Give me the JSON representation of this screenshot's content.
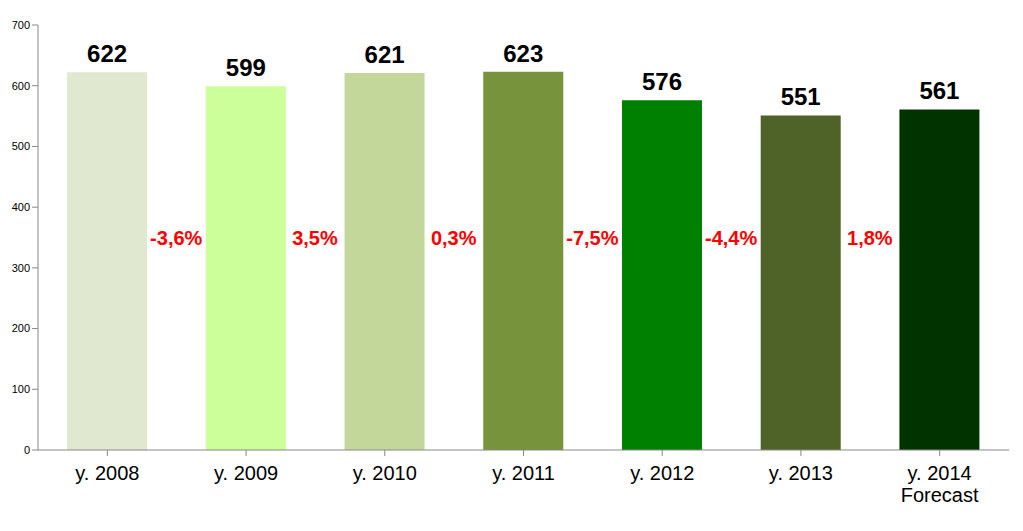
{
  "chart_data": {
    "type": "bar",
    "categories": [
      "y. 2008",
      "y. 2009",
      "y. 2010",
      "y. 2011",
      "y. 2012",
      "y. 2013",
      "y. 2014\nForecast"
    ],
    "values": [
      622,
      599,
      621,
      623,
      576,
      551,
      561
    ],
    "colors": [
      "#e0e8cf",
      "#ccff99",
      "#c4d79b",
      "#77933c",
      "#008000",
      "#4f6228",
      "#003300"
    ],
    "ylim": [
      0,
      700
    ],
    "yticks": [
      0,
      100,
      200,
      300,
      400,
      500,
      600,
      700
    ],
    "grid": false,
    "data_labels": true,
    "annotations": [
      "-3,6%",
      "3,5%",
      "0,3%",
      "-7,5%",
      "-4,4%",
      "1,8%"
    ]
  }
}
